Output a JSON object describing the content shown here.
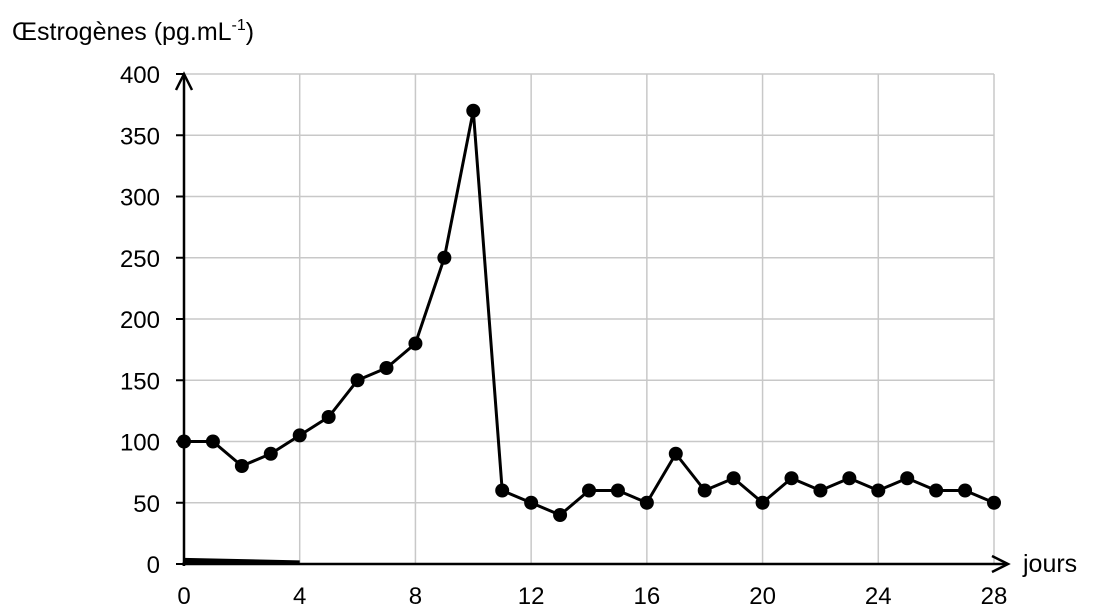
{
  "chart_data": {
    "type": "line",
    "ylabel_main": "Œstrogènes (pg.mL",
    "ylabel_sup": "-1",
    "ylabel_close": ")",
    "xlabel": "jours",
    "xlim": [
      0,
      28
    ],
    "ylim": [
      0,
      400
    ],
    "grid": true,
    "xticks": [
      0,
      4,
      8,
      12,
      16,
      20,
      24,
      28
    ],
    "yticks": [
      0,
      50,
      100,
      150,
      200,
      250,
      300,
      350,
      400
    ],
    "x": [
      0,
      1,
      2,
      3,
      4,
      5,
      6,
      7,
      8,
      9,
      10,
      11,
      12,
      13,
      14,
      15,
      16,
      17,
      18,
      19,
      20,
      21,
      22,
      23,
      24,
      25,
      26,
      27,
      28
    ],
    "y": [
      100,
      100,
      80,
      90,
      105,
      120,
      150,
      160,
      180,
      250,
      370,
      60,
      50,
      40,
      60,
      60,
      50,
      90,
      60,
      70,
      50,
      70,
      60,
      70,
      60,
      70,
      60,
      60,
      50
    ],
    "bar_segment": {
      "x_start": 0,
      "x_end": 4,
      "y_start": 5,
      "y_end": 3
    }
  }
}
